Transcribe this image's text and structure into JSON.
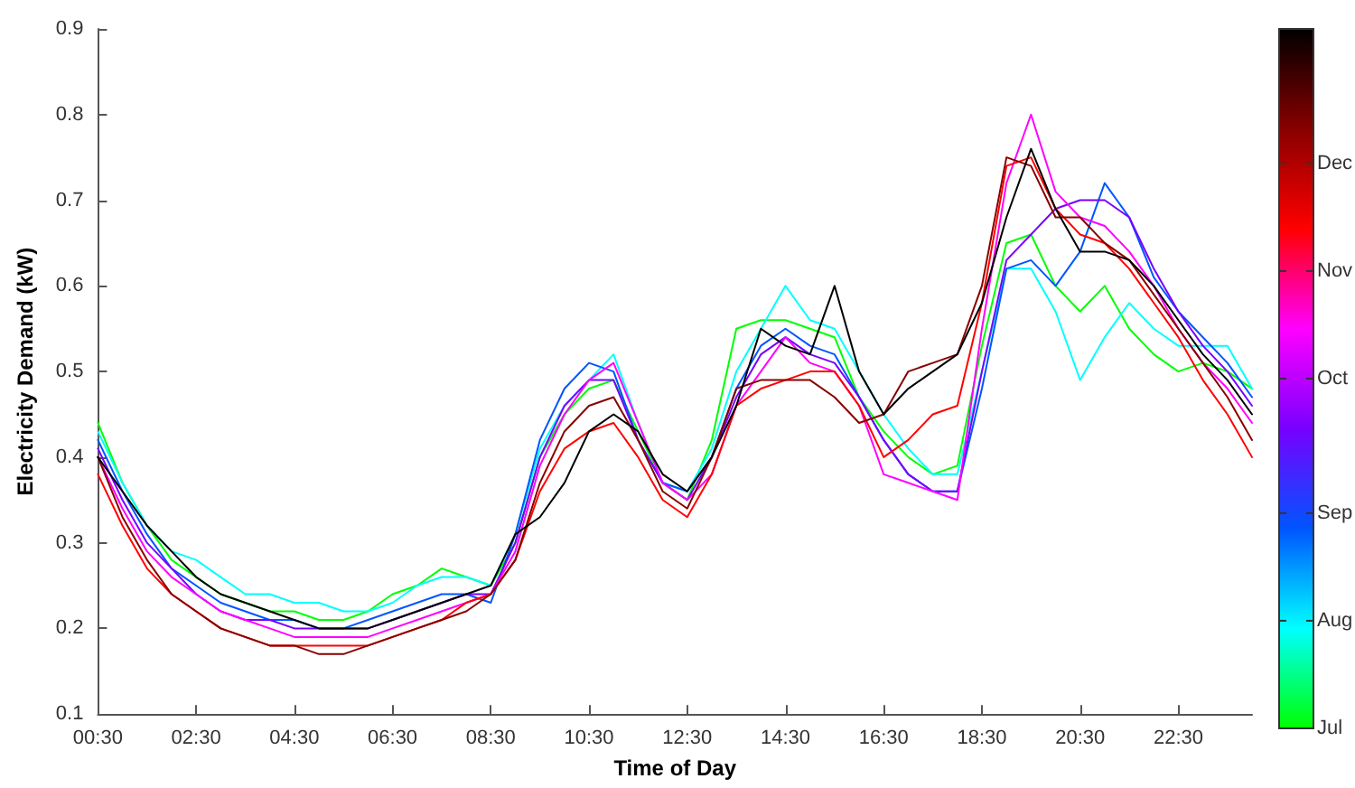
{
  "chart_data": {
    "type": "line",
    "xlabel": "Time of Day",
    "ylabel": "Electricity Demand (kW)",
    "x": [
      0.5,
      1,
      1.5,
      2,
      2.5,
      3,
      3.5,
      4,
      4.5,
      5,
      5.5,
      6,
      6.5,
      7,
      7.5,
      8,
      8.5,
      9,
      9.5,
      10,
      10.5,
      11,
      11.5,
      12,
      12.5,
      13,
      13.5,
      14,
      14.5,
      15,
      15.5,
      16,
      16.5,
      17,
      17.5,
      18,
      18.5,
      19,
      19.5,
      20,
      20.5,
      21,
      21.5,
      22,
      22.5,
      23,
      23.5,
      24
    ],
    "xlim": [
      0.5,
      24
    ],
    "xticks": [
      {
        "value": 0.5,
        "label": "00:30"
      },
      {
        "value": 2.5,
        "label": "02:30"
      },
      {
        "value": 4.5,
        "label": "04:30"
      },
      {
        "value": 6.5,
        "label": "06:30"
      },
      {
        "value": 8.5,
        "label": "08:30"
      },
      {
        "value": 10.5,
        "label": "10:30"
      },
      {
        "value": 12.5,
        "label": "12:30"
      },
      {
        "value": 14.5,
        "label": "14:30"
      },
      {
        "value": 16.5,
        "label": "16:30"
      },
      {
        "value": 18.5,
        "label": "18:30"
      },
      {
        "value": 20.5,
        "label": "20:30"
      },
      {
        "value": 22.5,
        "label": "22:30"
      }
    ],
    "ylim": [
      0.1,
      0.9
    ],
    "yticks": [
      0.1,
      0.2,
      0.3,
      0.4,
      0.5,
      0.6,
      0.7,
      0.8,
      0.9
    ],
    "grid": false,
    "marker": "none",
    "line_style": "solid",
    "clim": [
      0,
      26
    ],
    "cticks": [
      {
        "value": 0,
        "label": "Jul"
      },
      {
        "value": 4,
        "label": "Aug"
      },
      {
        "value": 8,
        "label": "Sep"
      },
      {
        "value": 13,
        "label": "Oct"
      },
      {
        "value": 17,
        "label": "Nov"
      },
      {
        "value": 21,
        "label": "Dec"
      }
    ],
    "series": [
      {
        "color": "#00ff00",
        "values": [
          0.44,
          0.37,
          0.32,
          0.28,
          0.26,
          0.24,
          0.23,
          0.22,
          0.22,
          0.21,
          0.21,
          0.22,
          0.24,
          0.25,
          0.27,
          0.26,
          0.25,
          0.3,
          0.4,
          0.45,
          0.48,
          0.49,
          0.43,
          0.37,
          0.35,
          0.42,
          0.55,
          0.56,
          0.56,
          0.55,
          0.54,
          0.47,
          0.43,
          0.4,
          0.38,
          0.39,
          0.53,
          0.65,
          0.66,
          0.6,
          0.57,
          0.6,
          0.55,
          0.52,
          0.5,
          0.51,
          0.5,
          0.48
        ]
      },
      {
        "color": "#00ffff",
        "values": [
          0.43,
          0.37,
          0.32,
          0.29,
          0.28,
          0.26,
          0.24,
          0.24,
          0.23,
          0.23,
          0.22,
          0.22,
          0.23,
          0.25,
          0.26,
          0.26,
          0.25,
          0.31,
          0.41,
          0.46,
          0.49,
          0.52,
          0.44,
          0.37,
          0.36,
          0.41,
          0.5,
          0.55,
          0.6,
          0.56,
          0.55,
          0.5,
          0.45,
          0.41,
          0.38,
          0.38,
          0.5,
          0.62,
          0.62,
          0.57,
          0.49,
          0.54,
          0.58,
          0.55,
          0.53,
          0.53,
          0.53,
          0.48
        ]
      },
      {
        "color": "#0055ff",
        "values": [
          0.42,
          0.36,
          0.31,
          0.27,
          0.25,
          0.23,
          0.22,
          0.21,
          0.21,
          0.2,
          0.2,
          0.21,
          0.22,
          0.23,
          0.24,
          0.24,
          0.23,
          0.31,
          0.42,
          0.48,
          0.51,
          0.5,
          0.42,
          0.37,
          0.36,
          0.4,
          0.48,
          0.53,
          0.55,
          0.53,
          0.52,
          0.47,
          0.42,
          0.38,
          0.36,
          0.36,
          0.48,
          0.62,
          0.63,
          0.6,
          0.64,
          0.72,
          0.68,
          0.61,
          0.57,
          0.54,
          0.51,
          0.47
        ]
      },
      {
        "color": "#7700ff",
        "values": [
          0.41,
          0.35,
          0.3,
          0.27,
          0.24,
          0.22,
          0.21,
          0.21,
          0.2,
          0.2,
          0.2,
          0.2,
          0.21,
          0.22,
          0.23,
          0.24,
          0.24,
          0.3,
          0.4,
          0.46,
          0.49,
          0.49,
          0.42,
          0.37,
          0.35,
          0.4,
          0.47,
          0.52,
          0.54,
          0.52,
          0.51,
          0.47,
          0.42,
          0.38,
          0.36,
          0.36,
          0.5,
          0.63,
          0.66,
          0.69,
          0.7,
          0.7,
          0.68,
          0.62,
          0.57,
          0.53,
          0.5,
          0.46
        ]
      },
      {
        "color": "#ff00ff",
        "values": [
          0.4,
          0.34,
          0.29,
          0.26,
          0.24,
          0.22,
          0.21,
          0.2,
          0.19,
          0.19,
          0.19,
          0.19,
          0.2,
          0.21,
          0.22,
          0.23,
          0.24,
          0.29,
          0.39,
          0.45,
          0.49,
          0.51,
          0.44,
          0.37,
          0.35,
          0.38,
          0.46,
          0.5,
          0.54,
          0.51,
          0.5,
          0.46,
          0.38,
          0.37,
          0.36,
          0.35,
          0.55,
          0.72,
          0.8,
          0.71,
          0.68,
          0.67,
          0.64,
          0.6,
          0.55,
          0.51,
          0.48,
          0.44
        ]
      },
      {
        "color": "#ff0000",
        "values": [
          0.38,
          0.32,
          0.27,
          0.24,
          0.22,
          0.2,
          0.19,
          0.18,
          0.18,
          0.18,
          0.18,
          0.18,
          0.19,
          0.2,
          0.21,
          0.23,
          0.24,
          0.28,
          0.36,
          0.41,
          0.43,
          0.44,
          0.4,
          0.35,
          0.33,
          0.38,
          0.46,
          0.48,
          0.49,
          0.5,
          0.5,
          0.46,
          0.4,
          0.42,
          0.45,
          0.46,
          0.58,
          0.74,
          0.75,
          0.69,
          0.66,
          0.65,
          0.62,
          0.58,
          0.54,
          0.49,
          0.45,
          0.4
        ]
      },
      {
        "color": "#880000",
        "values": [
          0.4,
          0.33,
          0.28,
          0.24,
          0.22,
          0.2,
          0.19,
          0.18,
          0.18,
          0.17,
          0.17,
          0.18,
          0.19,
          0.2,
          0.21,
          0.22,
          0.24,
          0.28,
          0.37,
          0.43,
          0.46,
          0.47,
          0.42,
          0.36,
          0.34,
          0.4,
          0.48,
          0.49,
          0.49,
          0.49,
          0.47,
          0.44,
          0.45,
          0.5,
          0.51,
          0.52,
          0.6,
          0.75,
          0.74,
          0.68,
          0.68,
          0.65,
          0.63,
          0.59,
          0.55,
          0.51,
          0.47,
          0.42
        ]
      },
      {
        "color": "#000000",
        "values": [
          0.4,
          0.36,
          0.32,
          0.29,
          0.26,
          0.24,
          0.23,
          0.22,
          0.21,
          0.2,
          0.2,
          0.2,
          0.21,
          0.22,
          0.23,
          0.24,
          0.25,
          0.31,
          0.33,
          0.37,
          0.43,
          0.45,
          0.43,
          0.38,
          0.36,
          0.4,
          0.46,
          0.55,
          0.53,
          0.52,
          0.6,
          0.5,
          0.45,
          0.48,
          0.5,
          0.52,
          0.58,
          0.68,
          0.76,
          0.69,
          0.64,
          0.64,
          0.63,
          0.6,
          0.56,
          0.52,
          0.49,
          0.45
        ]
      }
    ]
  }
}
